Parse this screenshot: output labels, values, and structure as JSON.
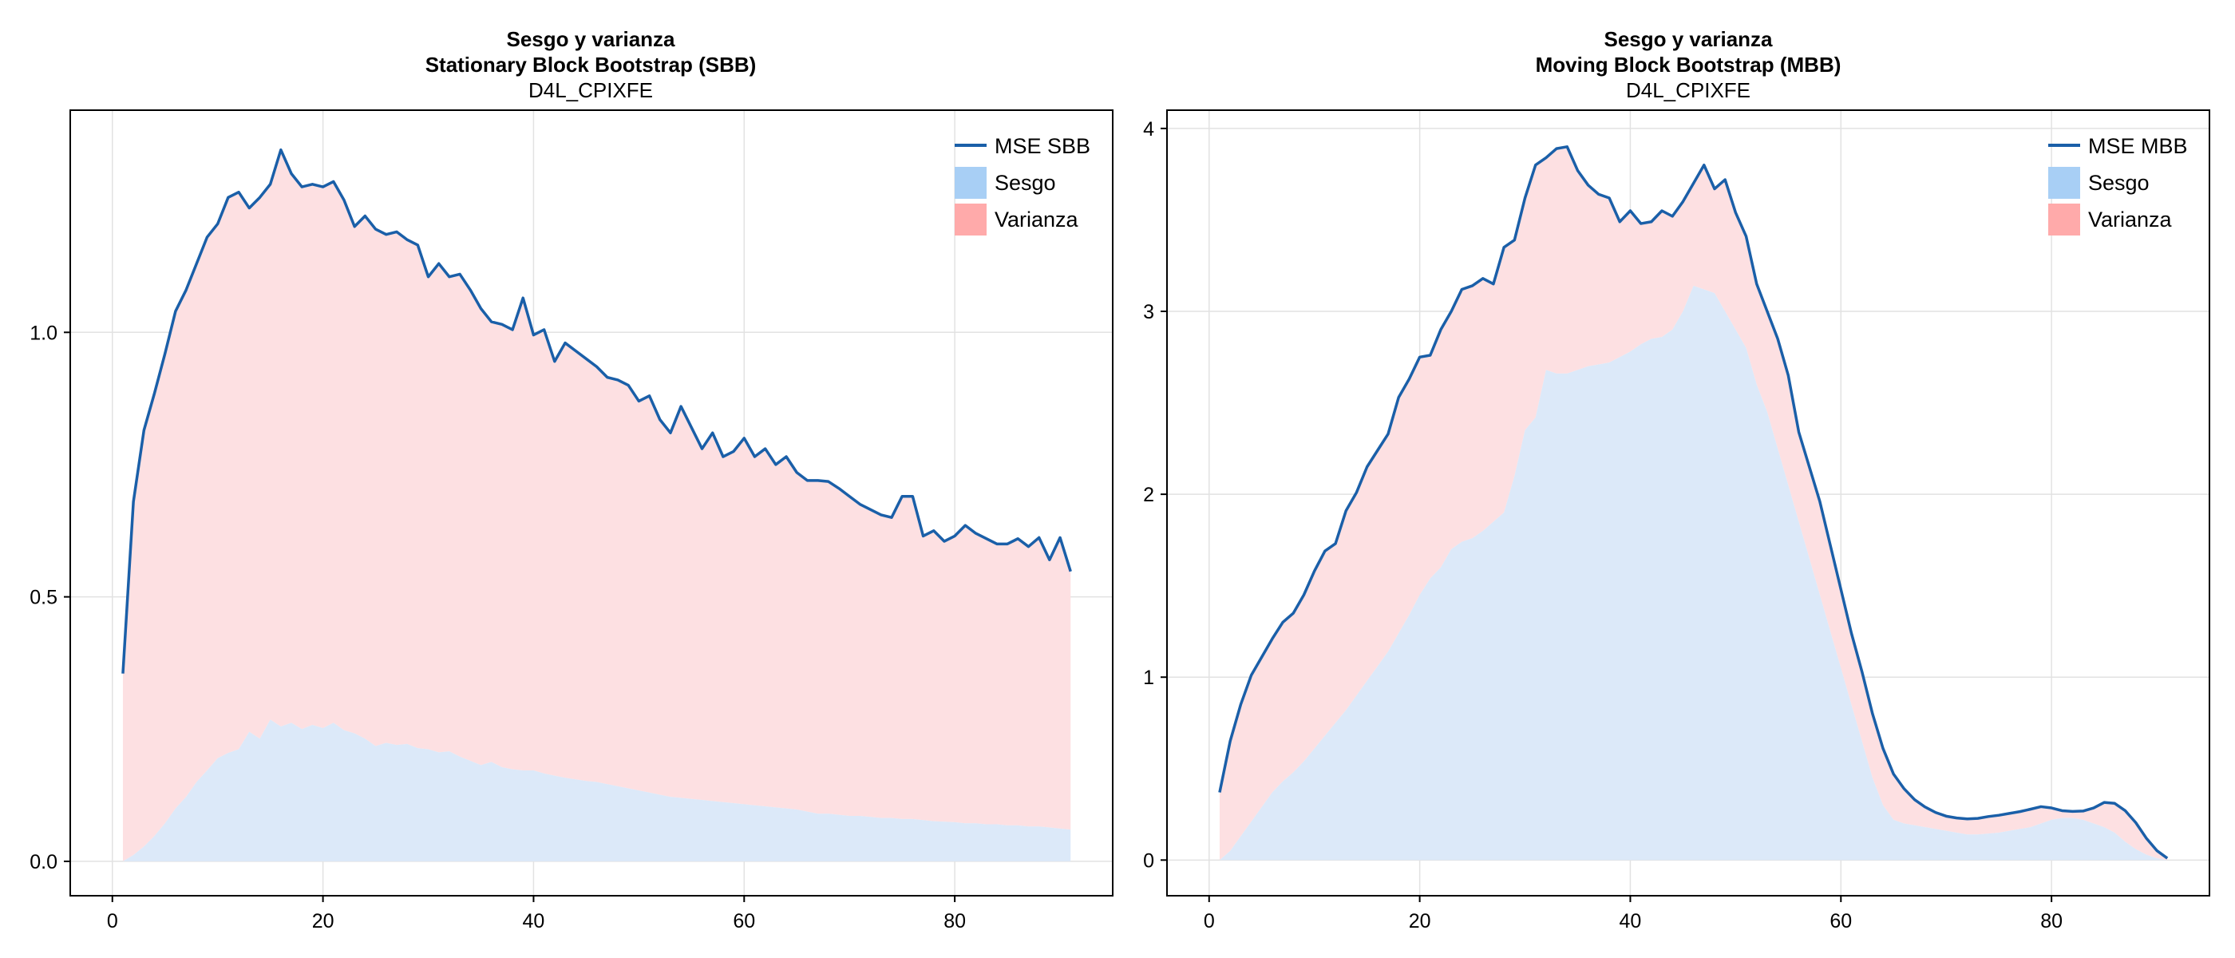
{
  "chart_data": [
    {
      "type": "area",
      "title": "Sesgo y varianza",
      "subtitle": "Stationary Block Bootstrap (SBB)",
      "subtitle2": "D4L_CPIXFE",
      "xlabel": "",
      "ylabel": "",
      "xlim": [
        -4,
        95
      ],
      "ylim": [
        -0.065,
        1.42
      ],
      "xticks": [
        0,
        20,
        40,
        60,
        80
      ],
      "yticks": [
        0.0,
        0.5,
        1.0
      ],
      "ytick_labels": [
        "0.0",
        "0.5",
        "1.0"
      ],
      "grid": true,
      "legend_position": "top-right",
      "colors": {
        "mse": "#1a5fa8",
        "sesgo": "#a8cff5",
        "varianza": "#ffaaaa",
        "sesgo_fill": "#dce9f9",
        "varianza_fill": "#fde0e2"
      },
      "legend": [
        "MSE SBB",
        "Sesgo",
        "Varianza"
      ],
      "x_start": 1,
      "mse": [
        0.355,
        0.68,
        0.815,
        0.885,
        0.96,
        1.04,
        1.08,
        1.13,
        1.18,
        1.205,
        1.255,
        1.265,
        1.235,
        1.255,
        1.28,
        1.345,
        1.3,
        1.275,
        1.28,
        1.275,
        1.285,
        1.25,
        1.2,
        1.22,
        1.195,
        1.185,
        1.19,
        1.175,
        1.165,
        1.105,
        1.13,
        1.105,
        1.11,
        1.08,
        1.045,
        1.02,
        1.015,
        1.005,
        1.065,
        0.995,
        1.005,
        0.945,
        0.98,
        0.965,
        0.95,
        0.935,
        0.915,
        0.91,
        0.9,
        0.87,
        0.88,
        0.835,
        0.81,
        0.86,
        0.82,
        0.78,
        0.81,
        0.765,
        0.775,
        0.8,
        0.765,
        0.78,
        0.75,
        0.765,
        0.735,
        0.72,
        0.72,
        0.718,
        0.705,
        0.69,
        0.675,
        0.665,
        0.655,
        0.65,
        0.69,
        0.69,
        0.615,
        0.625,
        0.605,
        0.615,
        0.635,
        0.62,
        0.61,
        0.6,
        0.6,
        0.61,
        0.595,
        0.612,
        0.57,
        0.612,
        0.548
      ],
      "sesgo": [
        0.0,
        0.012,
        0.028,
        0.048,
        0.072,
        0.1,
        0.122,
        0.15,
        0.172,
        0.195,
        0.205,
        0.212,
        0.245,
        0.232,
        0.268,
        0.255,
        0.262,
        0.25,
        0.258,
        0.252,
        0.262,
        0.248,
        0.242,
        0.232,
        0.218,
        0.224,
        0.22,
        0.222,
        0.214,
        0.212,
        0.206,
        0.208,
        0.198,
        0.19,
        0.182,
        0.188,
        0.178,
        0.174,
        0.172,
        0.172,
        0.166,
        0.162,
        0.158,
        0.155,
        0.152,
        0.15,
        0.146,
        0.142,
        0.138,
        0.134,
        0.13,
        0.126,
        0.122,
        0.12,
        0.118,
        0.116,
        0.114,
        0.112,
        0.11,
        0.108,
        0.106,
        0.104,
        0.102,
        0.1,
        0.098,
        0.094,
        0.09,
        0.09,
        0.088,
        0.086,
        0.086,
        0.084,
        0.082,
        0.082,
        0.08,
        0.08,
        0.078,
        0.076,
        0.075,
        0.074,
        0.072,
        0.072,
        0.07,
        0.07,
        0.068,
        0.068,
        0.066,
        0.066,
        0.064,
        0.062,
        0.06
      ]
    },
    {
      "type": "area",
      "title": "Sesgo y varianza",
      "subtitle": "Moving Block Bootstrap (MBB)",
      "subtitle2": "D4L_CPIXFE",
      "xlabel": "",
      "ylabel": "",
      "xlim": [
        -4,
        95
      ],
      "ylim": [
        -0.195,
        4.1
      ],
      "xticks": [
        0,
        20,
        40,
        60,
        80
      ],
      "yticks": [
        0,
        1,
        2,
        3,
        4
      ],
      "ytick_labels": [
        "0",
        "1",
        "2",
        "3",
        "4"
      ],
      "grid": true,
      "legend_position": "top-right",
      "colors": {
        "mse": "#1a5fa8",
        "sesgo": "#a8cff5",
        "varianza": "#ffaaaa",
        "sesgo_fill": "#dce9f9",
        "varianza_fill": "#fde0e2"
      },
      "legend": [
        "MSE MBB",
        "Sesgo",
        "Varianza"
      ],
      "x_start": 1,
      "mse": [
        0.37,
        0.65,
        0.85,
        1.01,
        1.11,
        1.21,
        1.3,
        1.35,
        1.45,
        1.58,
        1.69,
        1.73,
        1.91,
        2.01,
        2.15,
        2.24,
        2.33,
        2.53,
        2.63,
        2.75,
        2.76,
        2.9,
        3.0,
        3.12,
        3.14,
        3.18,
        3.15,
        3.35,
        3.39,
        3.62,
        3.8,
        3.84,
        3.89,
        3.9,
        3.77,
        3.69,
        3.64,
        3.62,
        3.49,
        3.55,
        3.48,
        3.49,
        3.55,
        3.52,
        3.6,
        3.7,
        3.8,
        3.67,
        3.72,
        3.54,
        3.41,
        3.15,
        3.0,
        2.85,
        2.65,
        2.34,
        2.15,
        1.96,
        1.72,
        1.48,
        1.24,
        1.03,
        0.8,
        0.61,
        0.47,
        0.39,
        0.33,
        0.29,
        0.26,
        0.24,
        0.23,
        0.225,
        0.228,
        0.238,
        0.245,
        0.255,
        0.265,
        0.278,
        0.292,
        0.285,
        0.27,
        0.266,
        0.268,
        0.285,
        0.315,
        0.31,
        0.27,
        0.205,
        0.12,
        0.052,
        0.01
      ],
      "sesgo": [
        0.0,
        0.05,
        0.13,
        0.21,
        0.29,
        0.37,
        0.43,
        0.48,
        0.54,
        0.61,
        0.68,
        0.75,
        0.82,
        0.9,
        0.98,
        1.06,
        1.14,
        1.24,
        1.34,
        1.45,
        1.54,
        1.6,
        1.7,
        1.74,
        1.76,
        1.8,
        1.85,
        1.9,
        2.1,
        2.35,
        2.42,
        2.68,
        2.66,
        2.66,
        2.68,
        2.7,
        2.71,
        2.72,
        2.75,
        2.78,
        2.82,
        2.85,
        2.86,
        2.9,
        3.0,
        3.14,
        3.12,
        3.1,
        3.0,
        2.9,
        2.8,
        2.6,
        2.45,
        2.25,
        2.05,
        1.85,
        1.65,
        1.45,
        1.25,
        1.05,
        0.85,
        0.65,
        0.45,
        0.3,
        0.22,
        0.2,
        0.19,
        0.18,
        0.17,
        0.16,
        0.15,
        0.14,
        0.14,
        0.145,
        0.15,
        0.16,
        0.17,
        0.18,
        0.2,
        0.22,
        0.23,
        0.23,
        0.22,
        0.2,
        0.18,
        0.15,
        0.1,
        0.06,
        0.03,
        0.01,
        0.0
      ]
    }
  ]
}
